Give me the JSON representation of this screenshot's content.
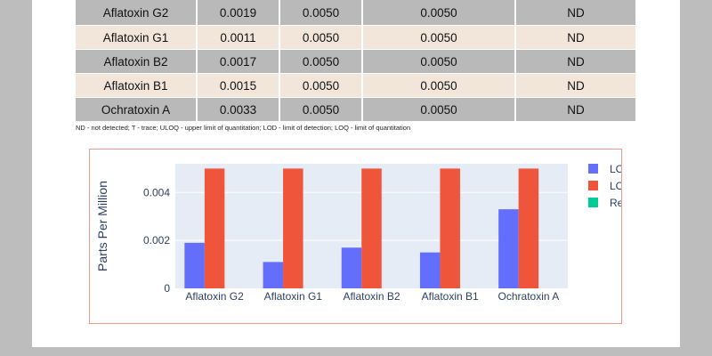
{
  "table": {
    "rows": [
      {
        "analyte": "Aflatoxin G2",
        "lod": "0.0019",
        "loq": "0.0050",
        "limit": "0.0050",
        "result": "ND"
      },
      {
        "analyte": "Aflatoxin G1",
        "lod": "0.0011",
        "loq": "0.0050",
        "limit": "0.0050",
        "result": "ND"
      },
      {
        "analyte": "Aflatoxin B2",
        "lod": "0.0017",
        "loq": "0.0050",
        "limit": "0.0050",
        "result": "ND"
      },
      {
        "analyte": "Aflatoxin B1",
        "lod": "0.0015",
        "loq": "0.0050",
        "limit": "0.0050",
        "result": "ND"
      },
      {
        "analyte": "Ochratoxin A",
        "lod": "0.0033",
        "loq": "0.0050",
        "limit": "0.0050",
        "result": "ND"
      }
    ]
  },
  "footnote": "ND - not detected; T - trace; ULOQ - upper limit of quantitation; LOD - limit of detection; LOQ - limit of quantitation",
  "chart_data": {
    "type": "bar",
    "categories": [
      "Aflatoxin G2",
      "Aflatoxin G1",
      "Aflatoxin B2",
      "Aflatoxin B1",
      "Ochratoxin A"
    ],
    "series": [
      {
        "name": "LOD",
        "color": "#636efa",
        "values": [
          0.0019,
          0.0011,
          0.0017,
          0.0015,
          0.0033
        ]
      },
      {
        "name": "LOQ",
        "color": "#ef553b",
        "values": [
          0.005,
          0.005,
          0.005,
          0.005,
          0.005
        ]
      },
      {
        "name": "Results",
        "color": "#00cc96",
        "values": [
          0,
          0,
          0,
          0,
          0
        ]
      }
    ],
    "ylabel": "Parts Per Million",
    "ylim": [
      0,
      0.0052
    ],
    "yticks": [
      0,
      0.002,
      0.004
    ],
    "ytick_labels": [
      "0",
      "0.002",
      "0.004"
    ],
    "grid": true,
    "legend_position": "right",
    "plot_background": "#e5ecf6"
  }
}
